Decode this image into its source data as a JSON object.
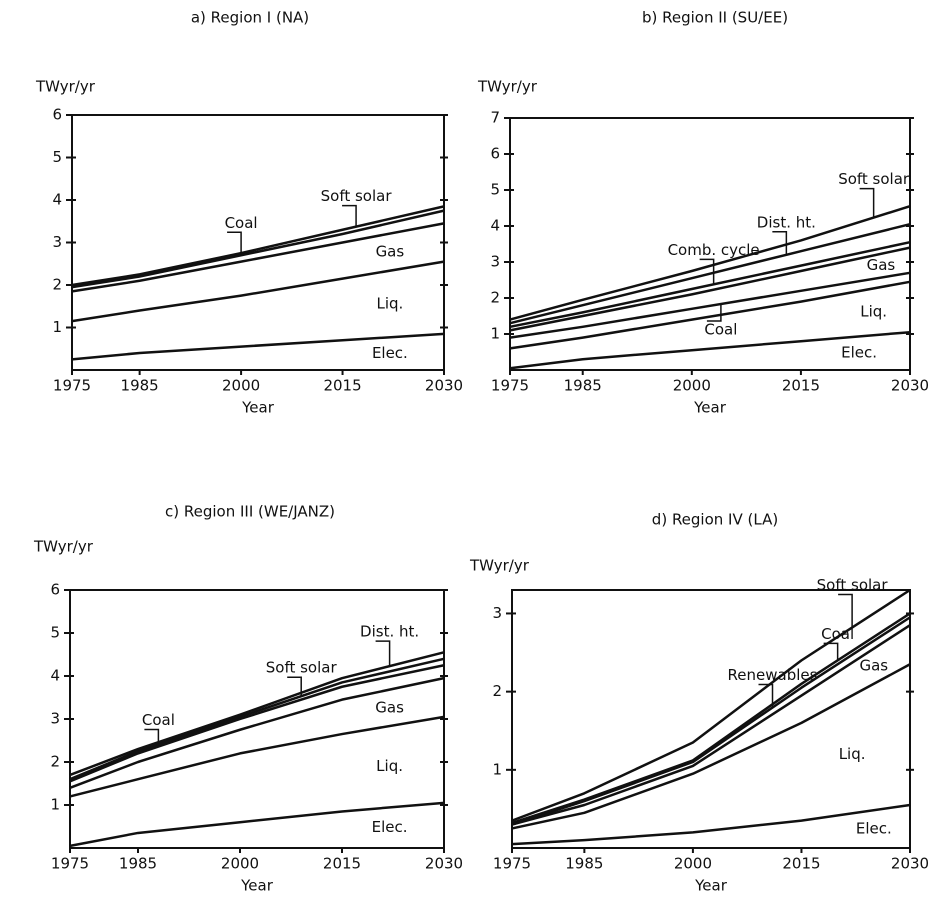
{
  "chart_data": [
    {
      "type": "line",
      "stacked": true,
      "title": "a)  Region I (NA)",
      "y_label": "TWyr/yr",
      "x_label": "Year",
      "x": [
        1975,
        1985,
        2000,
        2015,
        2030
      ],
      "xlim": [
        1975,
        2030
      ],
      "xticks": [
        1975,
        1985,
        2000,
        2015,
        2030
      ],
      "ylim": [
        0,
        6
      ],
      "yticks": [
        1,
        2,
        3,
        4,
        5,
        6
      ],
      "series": [
        {
          "name": "Elec.",
          "color": "#111111",
          "values": [
            0.25,
            0.4,
            0.55,
            0.7,
            0.85
          ]
        },
        {
          "name": "Liq.",
          "color": "#111111",
          "values": [
            0.9,
            1.0,
            1.2,
            1.45,
            1.7
          ]
        },
        {
          "name": "Gas",
          "color": "#111111",
          "values": [
            0.7,
            0.7,
            0.8,
            0.85,
            0.9
          ]
        },
        {
          "name": "Coal",
          "color": "#111111",
          "values": [
            0.1,
            0.1,
            0.15,
            0.2,
            0.3
          ]
        },
        {
          "name": "Soft solar",
          "color": "#111111",
          "values": [
            0.05,
            0.05,
            0.05,
            0.1,
            0.1
          ]
        }
      ]
    },
    {
      "type": "line",
      "stacked": true,
      "title": "b)  Region II (SU/EE)",
      "y_label": "TWyr/yr",
      "x_label": "Year",
      "x": [
        1975,
        1985,
        2000,
        2015,
        2030
      ],
      "xlim": [
        1975,
        2030
      ],
      "xticks": [
        1975,
        1985,
        2000,
        2015,
        2030
      ],
      "ylim": [
        0,
        7
      ],
      "yticks": [
        1,
        2,
        3,
        4,
        5,
        6,
        7
      ],
      "series": [
        {
          "name": "Elec.",
          "color": "#111111",
          "values": [
            0.05,
            0.3,
            0.55,
            0.8,
            1.05
          ]
        },
        {
          "name": "Liq.",
          "color": "#111111",
          "values": [
            0.55,
            0.6,
            0.85,
            1.1,
            1.4
          ]
        },
        {
          "name": "Coal",
          "color": "#111111",
          "values": [
            0.3,
            0.3,
            0.3,
            0.3,
            0.25
          ]
        },
        {
          "name": "Gas",
          "color": "#111111",
          "values": [
            0.2,
            0.3,
            0.4,
            0.55,
            0.7
          ]
        },
        {
          "name": "Comb. cycle",
          "color": "#111111",
          "values": [
            0.1,
            0.1,
            0.15,
            0.15,
            0.15
          ]
        },
        {
          "name": "Dist. ht.",
          "color": "#111111",
          "values": [
            0.1,
            0.2,
            0.3,
            0.4,
            0.5
          ]
        },
        {
          "name": "Soft solar",
          "color": "#111111",
          "values": [
            0.1,
            0.15,
            0.2,
            0.3,
            0.5
          ]
        }
      ]
    },
    {
      "type": "line",
      "stacked": true,
      "title": "c)  Region III (WE/JANZ)",
      "y_label": "TWyr/yr",
      "x_label": "Year",
      "x": [
        1975,
        1985,
        2000,
        2015,
        2030
      ],
      "xlim": [
        1975,
        2030
      ],
      "xticks": [
        1975,
        1985,
        2000,
        2015,
        2030
      ],
      "ylim": [
        0,
        6
      ],
      "yticks": [
        1,
        2,
        3,
        4,
        5,
        6
      ],
      "series": [
        {
          "name": "Elec.",
          "color": "#111111",
          "values": [
            0.05,
            0.35,
            0.6,
            0.85,
            1.05
          ]
        },
        {
          "name": "Liq.",
          "color": "#111111",
          "values": [
            1.15,
            1.25,
            1.6,
            1.8,
            2.0
          ]
        },
        {
          "name": "Gas",
          "color": "#111111",
          "values": [
            0.2,
            0.4,
            0.55,
            0.8,
            0.9
          ]
        },
        {
          "name": "Coal",
          "color": "#111111",
          "values": [
            0.15,
            0.2,
            0.25,
            0.3,
            0.3
          ]
        },
        {
          "name": "Soft solar",
          "color": "#111111",
          "values": [
            0.05,
            0.05,
            0.05,
            0.1,
            0.15
          ]
        },
        {
          "name": "Dist. ht.",
          "color": "#111111",
          "values": [
            0.1,
            0.05,
            0.05,
            0.1,
            0.15
          ]
        }
      ]
    },
    {
      "type": "line",
      "stacked": true,
      "title": "d)  Region IV (LA)",
      "y_label": "TWyr/yr",
      "x_label": "Year",
      "x": [
        1975,
        1985,
        2000,
        2015,
        2030
      ],
      "xlim": [
        1975,
        2030
      ],
      "xticks": [
        1975,
        1985,
        2000,
        2015,
        2030
      ],
      "ylim": [
        0,
        3.3
      ],
      "yticks": [
        1,
        2,
        3
      ],
      "series": [
        {
          "name": "Elec.",
          "color": "#111111",
          "values": [
            0.05,
            0.1,
            0.2,
            0.35,
            0.55
          ]
        },
        {
          "name": "Liq.",
          "color": "#111111",
          "values": [
            0.2,
            0.35,
            0.75,
            1.25,
            1.8
          ]
        },
        {
          "name": "Gas",
          "color": "#111111",
          "values": [
            0.05,
            0.1,
            0.1,
            0.35,
            0.5
          ]
        },
        {
          "name": "Renewables",
          "color": "#111111",
          "values": [
            0.0,
            0.05,
            0.05,
            0.1,
            0.1
          ]
        },
        {
          "name": "Coal",
          "color": "#111111",
          "values": [
            0.02,
            0.02,
            0.02,
            0.05,
            0.05
          ]
        },
        {
          "name": "Soft solar",
          "color": "#111111",
          "values": [
            0.03,
            0.08,
            0.23,
            0.3,
            0.3
          ]
        }
      ]
    }
  ]
}
